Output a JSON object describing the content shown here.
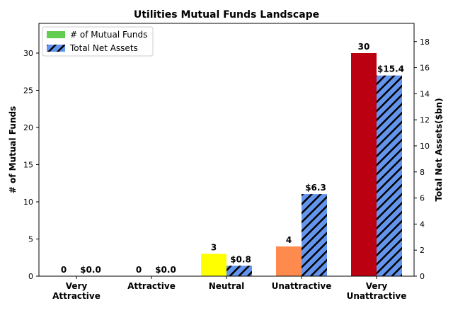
{
  "chart_data": {
    "type": "bar",
    "title": "Utilities Mutual Funds Landscape",
    "categories": [
      [
        "Very",
        "Attractive"
      ],
      [
        "Attractive"
      ],
      [
        "Neutral"
      ],
      [
        "Unattractive"
      ],
      [
        "Very",
        "Unattractive"
      ]
    ],
    "ylabel_left": "# of Mutual Funds",
    "ylabel_right": "Total Net Assets($bn)",
    "ylim_left": [
      0,
      34
    ],
    "ylim_right": [
      0,
      19.4
    ],
    "yticks_left": [
      "0",
      "5",
      "10",
      "15",
      "20",
      "25",
      "30"
    ],
    "yticks_right": [
      "0",
      "2",
      "4",
      "6",
      "8",
      "10",
      "12",
      "14",
      "16",
      "18"
    ],
    "series": [
      {
        "name": "# of Mutual Funds",
        "axis": "left",
        "values": [
          0,
          0,
          3,
          4,
          30
        ],
        "labels": [
          "0",
          "0",
          "3",
          "4",
          "30"
        ],
        "colors": [
          "#63cd52",
          "#63cd52",
          "#ffff00",
          "#fe8a4e",
          "#bb0012"
        ],
        "legend_color": "#63cd52"
      },
      {
        "name": "Total Net Assets",
        "axis": "right",
        "values": [
          0.0,
          0.0,
          0.8,
          6.3,
          15.4
        ],
        "labels": [
          "$0.0",
          "$0.0",
          "$0.8",
          "$6.3",
          "$15.4"
        ],
        "color": "#6495ed",
        "hatch": "diagonal"
      }
    ],
    "legend": {
      "position": "upper-left"
    },
    "grid": false
  }
}
